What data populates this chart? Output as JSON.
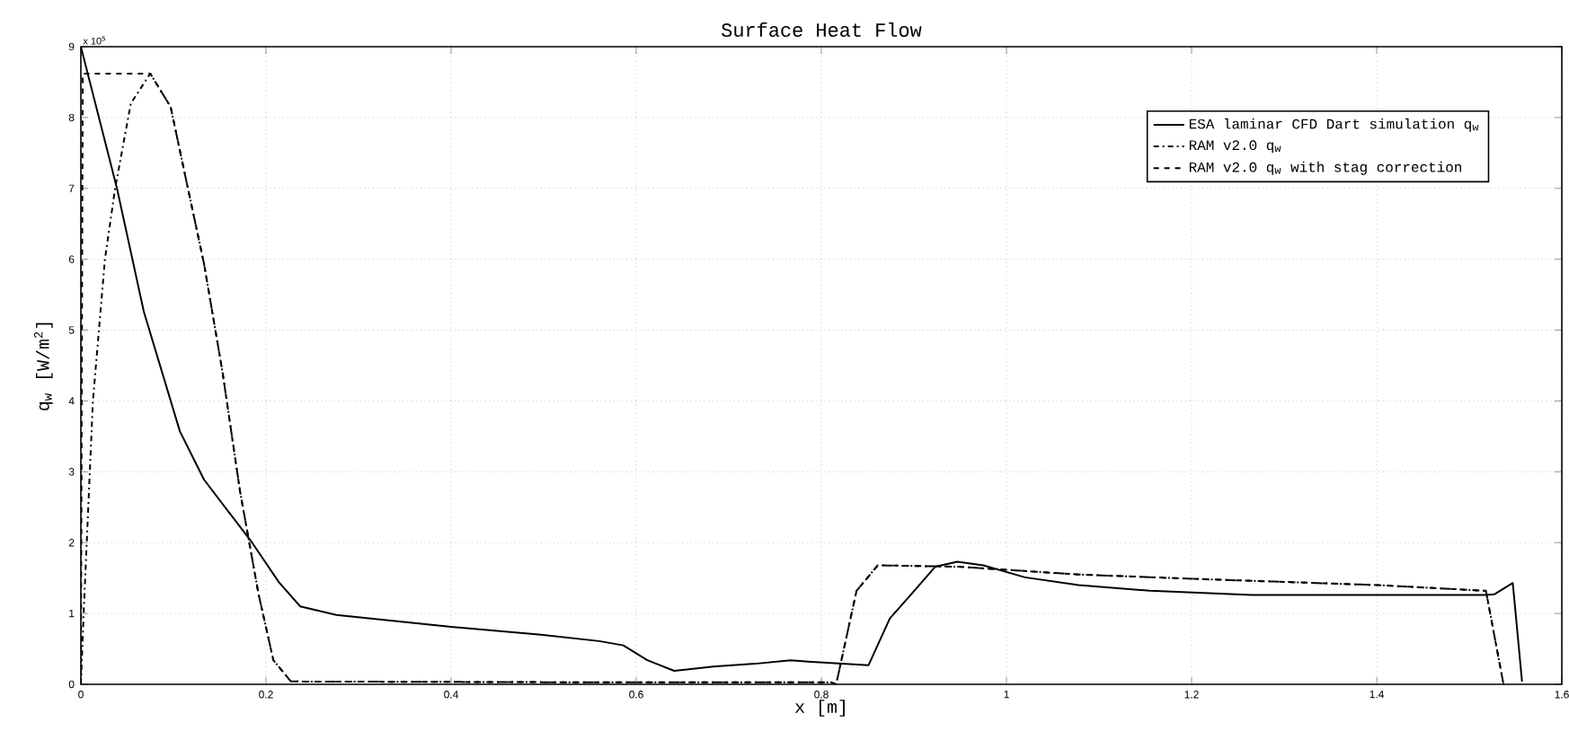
{
  "chart_data": {
    "type": "line",
    "title": "Surface Heat Flow",
    "xlabel": "x [m]",
    "ylabel": "q$_{w}$  [W/m$^{2}$]",
    "annotations": [
      "x 10$^{5}$"
    ],
    "xlim": [
      0,
      1.6
    ],
    "ylim": [
      0,
      9
    ],
    "xticks": [
      0,
      0.2,
      0.4,
      0.6,
      0.8,
      1,
      1.2,
      1.4,
      1.6
    ],
    "yticks": [
      0,
      1,
      2,
      3,
      4,
      5,
      6,
      7,
      8,
      9
    ],
    "grid": true,
    "legend": "top right",
    "series": [
      {
        "name": "ESA laminar CFD Dart simulation q$_{w}$",
        "color": "#000000",
        "line_style": "solid",
        "x": [
          0,
          0.039,
          0.068,
          0.107,
          0.133,
          0.185,
          0.214,
          0.237,
          0.276,
          0.4,
          0.497,
          0.56,
          0.586,
          0.612,
          0.641,
          0.683,
          0.728,
          0.767,
          0.786,
          0.851,
          0.874,
          0.897,
          0.923,
          0.947,
          0.975,
          1.02,
          1.078,
          1.155,
          1.265,
          1.518,
          1.527,
          1.547,
          1.557
        ],
        "values": [
          9.0,
          7.0,
          5.26,
          3.57,
          2.89,
          2.0,
          1.44,
          1.1,
          0.98,
          0.81,
          0.7,
          0.61,
          0.55,
          0.34,
          0.19,
          0.25,
          0.29,
          0.34,
          0.32,
          0.27,
          0.93,
          1.27,
          1.66,
          1.73,
          1.68,
          1.51,
          1.4,
          1.32,
          1.26,
          1.26,
          1.27,
          1.43,
          0.04
        ]
      },
      {
        "name": "RAM v2.0 q$_{w}$",
        "color": "#000000",
        "line_style": "dashdot",
        "x": [
          0,
          0.003,
          0.013,
          0.026,
          0.037,
          0.054,
          0.075,
          0.097,
          0.114,
          0.133,
          0.153,
          0.172,
          0.192,
          0.208,
          0.227,
          0.5,
          0.81,
          0.816,
          0.838,
          0.861,
          0.948,
          1.078,
          1.2,
          1.402,
          1.518,
          1.537
        ],
        "values": [
          0,
          1.0,
          4.0,
          6.0,
          7.0,
          8.2,
          8.62,
          8.15,
          7.1,
          5.94,
          4.41,
          2.72,
          1.27,
          0.34,
          0.04,
          0.03,
          0.03,
          0,
          1.32,
          1.68,
          1.66,
          1.55,
          1.49,
          1.4,
          1.32,
          0
        ]
      },
      {
        "name": "RAM v2.0 q$_{w}$ with stag correction",
        "color": "#000000",
        "line_style": "dashed",
        "x": [
          0,
          0.002,
          0.075,
          0.097,
          0.114,
          0.133,
          0.153,
          0.172,
          0.192,
          0.208,
          0.227,
          0.5,
          0.81,
          0.816,
          0.838,
          0.861,
          0.948,
          1.078,
          1.2,
          1.402,
          1.518,
          1.537
        ],
        "values": [
          0,
          8.62,
          8.62,
          8.15,
          7.1,
          5.94,
          4.41,
          2.72,
          1.27,
          0.34,
          0.04,
          0.03,
          0.03,
          0,
          1.32,
          1.68,
          1.66,
          1.55,
          1.49,
          1.4,
          1.32,
          0
        ]
      }
    ]
  }
}
